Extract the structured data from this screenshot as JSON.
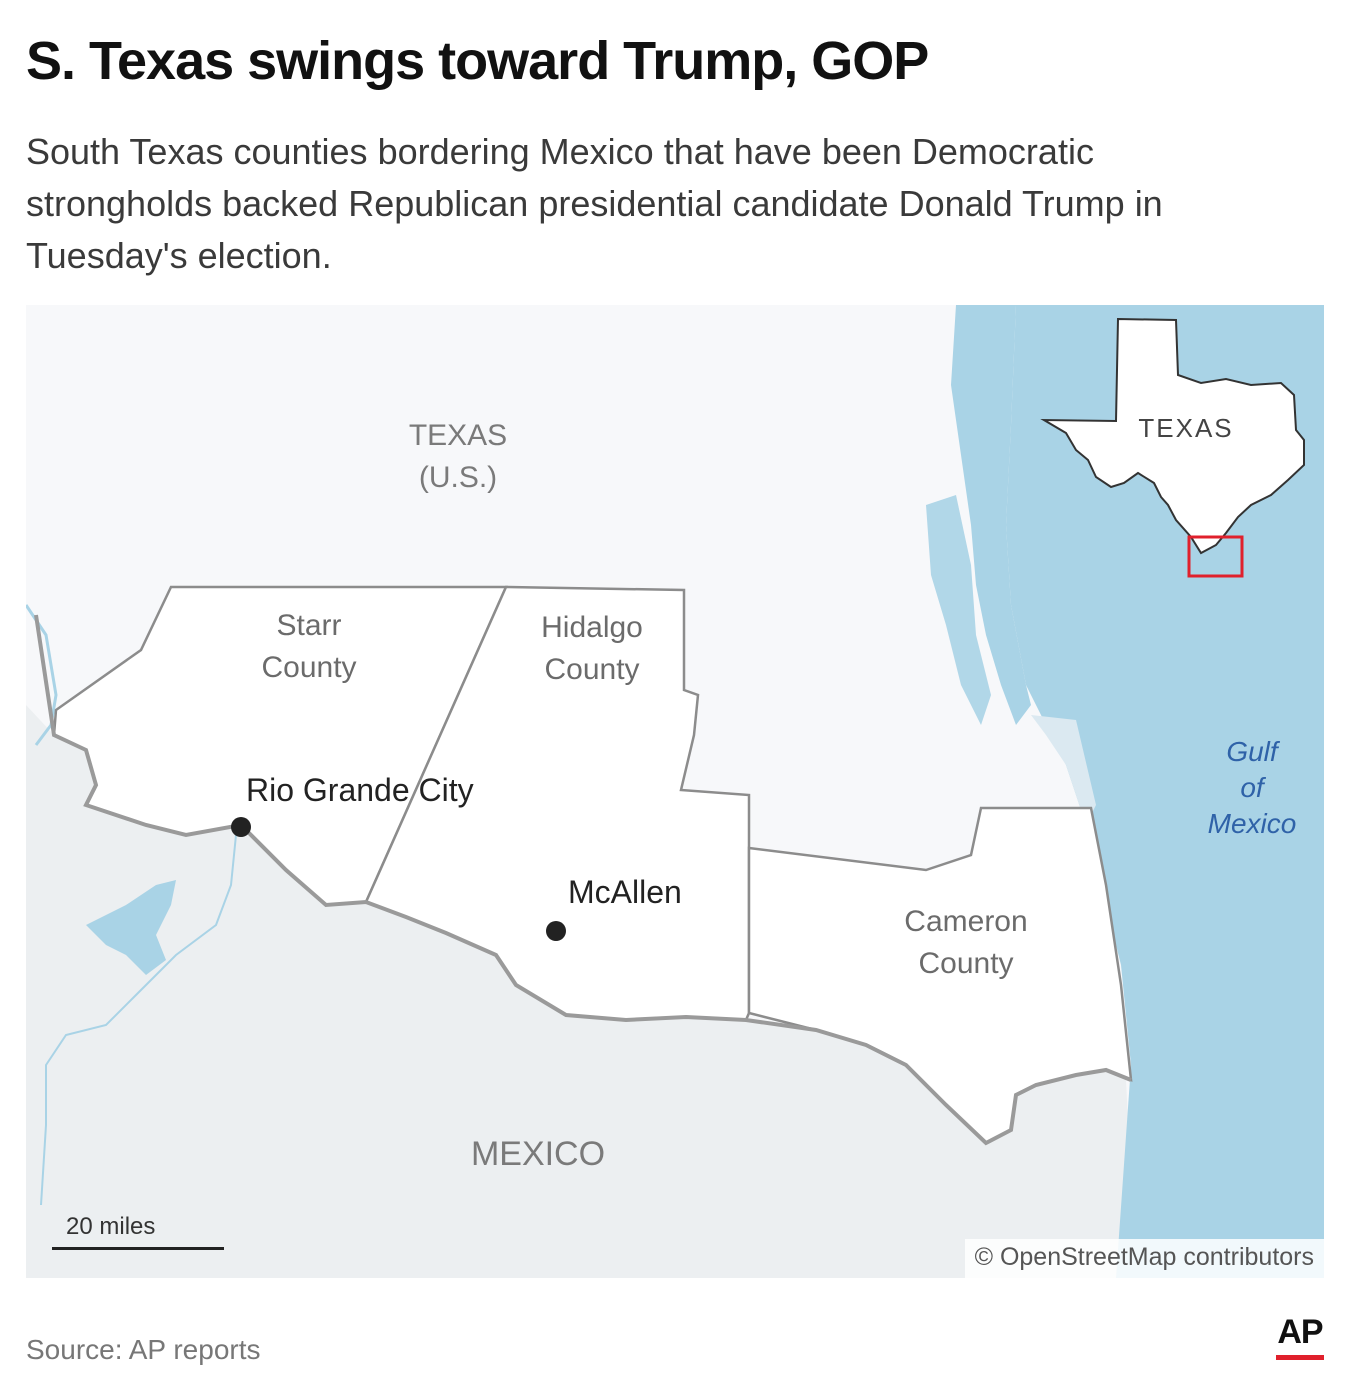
{
  "header": {
    "title": "S. Texas swings toward Trump, GOP",
    "subtitle": "South Texas counties bordering Mexico that have been Democratic strongholds backed Republican presidential candidate Donald Trump in Tuesday's election."
  },
  "map": {
    "labels": {
      "texas_line1": "TEXAS",
      "texas_line2": "(U.S.)",
      "mexico": "MEXICO",
      "gulf_line1": "Gulf",
      "gulf_line2": "of",
      "gulf_line3": "Mexico"
    },
    "counties": [
      {
        "line1": "Starr",
        "line2": "County"
      },
      {
        "line1": "Hidalgo",
        "line2": "County"
      },
      {
        "line1": "Cameron",
        "line2": "County"
      }
    ],
    "cities": [
      {
        "name": "Rio Grande City"
      },
      {
        "name": "McAllen"
      }
    ],
    "inset": {
      "label": "TEXAS"
    },
    "scale": {
      "label": "20 miles"
    },
    "attribution": "© OpenStreetMap contributors"
  },
  "footer": {
    "source": "Source: AP reports",
    "logo": "AP"
  },
  "colors": {
    "water": "#a9d3e6",
    "land_us": "#f7f8fa",
    "land_mexico": "#eceff1",
    "county_fill": "#ffffff",
    "county_border": "#8c8c8c",
    "inset_box": "#e0202c",
    "water_label": "#2f62a8"
  }
}
